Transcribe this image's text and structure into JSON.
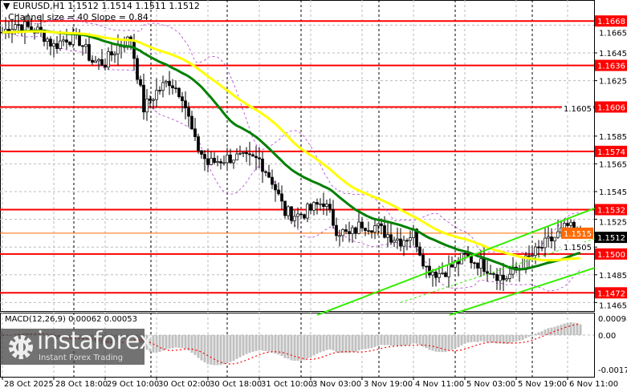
{
  "header": {
    "symbol_line": "EURUSD,H1  1.1512 1.1514 1.1511 1.1512",
    "channel_line": "Channel size = 40 Slope = 0.84"
  },
  "macd_label": "MACD(12,26,9) 0.00062 0.00053",
  "logo": {
    "name": "instaforex",
    "tagline": "Instant Forex Trading"
  },
  "colors": {
    "level_line": "#ff0000",
    "current_price_line": "#ff6a00",
    "sma_fast": "#008000",
    "sma_slow": "#ffff00",
    "channel": "#33ee00",
    "envelope": "#b040d0",
    "macd_hist": "#c0c0c0",
    "macd_signal": "#ff0000"
  },
  "chart_data": {
    "type": "candlestick",
    "symbol": "EURUSD",
    "timeframe": "H1",
    "ylim": [
      1.1459,
      1.1676
    ],
    "y_ticks": [
      "1.1665",
      "1.1645",
      "1.1625",
      "1.1605",
      "1.1585",
      "1.1565",
      "1.1545",
      "1.1525",
      "1.1505",
      "1.1485",
      "1.1465"
    ],
    "x_ticks": [
      "28 Oct 2025",
      "28 Oct 18:00",
      "29 Oct 10:00",
      "30 Oct 02:00",
      "30 Oct 18:00",
      "31 Oct 10:00",
      "3 Nov 03:00",
      "3 Nov 19:00",
      "4 Nov 11:00",
      "5 Nov 03:00",
      "5 Nov 19:00",
      "6 Nov 11:00"
    ],
    "close_every_4_bars": [
      1.166,
      1.1666,
      1.1663,
      1.166,
      1.165,
      1.1656,
      1.1654,
      1.1639,
      1.1638,
      1.165,
      1.1655,
      1.1605,
      1.1617,
      1.1625,
      1.1615,
      1.158,
      1.1565,
      1.1568,
      1.157,
      1.1568,
      1.1568,
      1.1553,
      1.153,
      1.1528,
      1.1532,
      1.1538,
      1.1518,
      1.1513,
      1.1522,
      1.152,
      1.1514,
      1.151,
      1.1515,
      1.149,
      1.1486,
      1.1491,
      1.1498,
      1.1494,
      1.1489,
      1.1482,
      1.1488,
      1.1497,
      1.1505,
      1.1512,
      1.152,
      1.1512
    ],
    "levels": [
      "1.1668",
      "1.1636",
      "1.1606",
      "1.1574",
      "1.1532",
      "1.1500",
      "1.1472"
    ],
    "current_price": "1.1512",
    "bid_line": "1.1515",
    "channel": {
      "upper": [
        [
          24.5,
          1.1456
        ],
        [
          46.1,
          1.1533
        ]
      ],
      "middle": [
        [
          31,
          1.1465
        ],
        [
          46.1,
          1.1511
        ]
      ],
      "lower": [
        [
          34.8,
          1.1456
        ],
        [
          46.1,
          1.149
        ]
      ]
    },
    "moving_averages": [
      {
        "period": 30,
        "color": "sma_fast"
      },
      {
        "period": 50,
        "color": "sma_slow"
      }
    ],
    "macd": {
      "params": [
        12,
        26,
        9
      ],
      "main": 0.00062,
      "signal": 0.00053,
      "y_ticks": [
        "0.00098",
        "0.00",
        "-0.00179"
      ]
    }
  }
}
